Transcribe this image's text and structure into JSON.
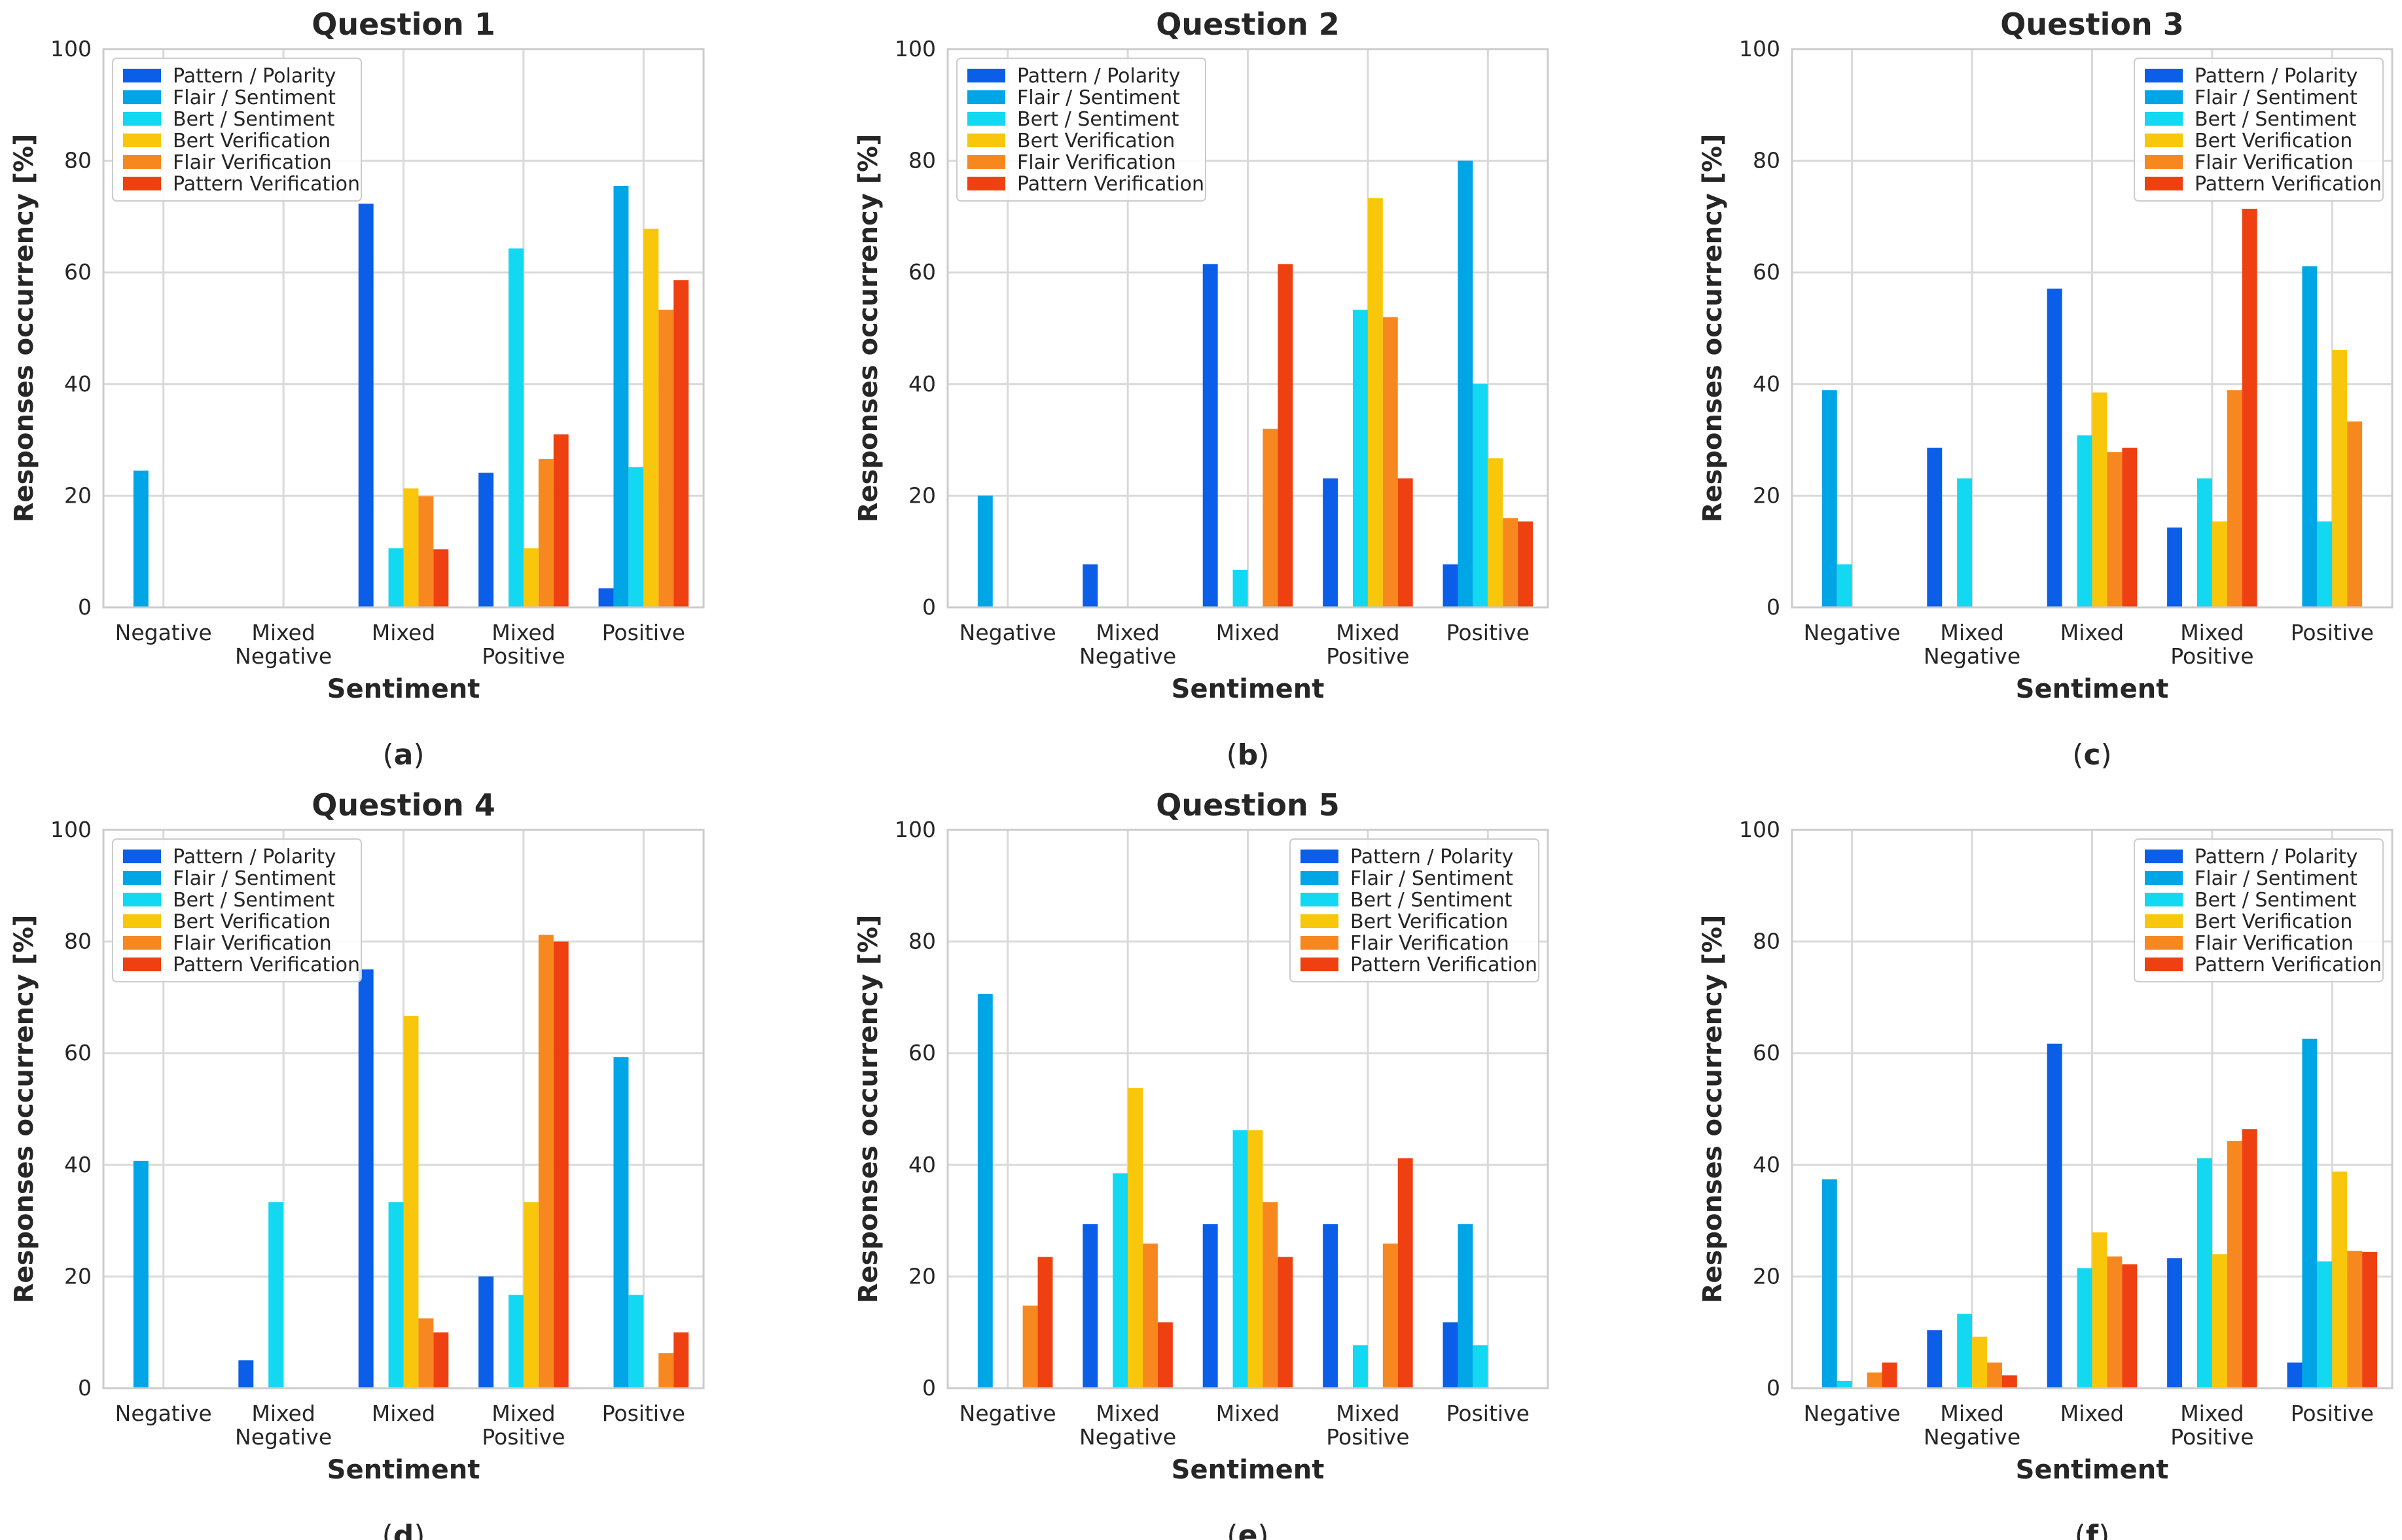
{
  "figure": {
    "captions": [
      "a",
      "b",
      "c",
      "d",
      "e",
      "f"
    ]
  },
  "chart_data": [
    {
      "type": "bar",
      "title": "Question 1",
      "caption": "a",
      "xlabel": "Sentiment",
      "ylabel": "Responses occurrency [%]",
      "ylim": [
        0,
        100
      ],
      "yticks": [
        0,
        20,
        40,
        60,
        80,
        100
      ],
      "grid": true,
      "legend_position": "top-left",
      "categories": [
        [
          "Negative"
        ],
        [
          "Mixed",
          "Negative"
        ],
        [
          "Mixed"
        ],
        [
          "Mixed",
          "Positive"
        ],
        [
          "Positive"
        ]
      ],
      "series": [
        {
          "name": "Pattern / Polarity",
          "color": "#0a5ee8",
          "values": [
            0,
            0,
            72.3,
            24.1,
            3.4
          ]
        },
        {
          "name": "Flair / Sentiment",
          "color": "#00a5e6",
          "values": [
            24.5,
            0,
            0,
            0,
            75.5
          ]
        },
        {
          "name": "Bert / Sentiment",
          "color": "#12d8f2",
          "values": [
            0,
            0,
            10.6,
            64.3,
            25.1
          ]
        },
        {
          "name": "Bert Verification",
          "color": "#f8c60a",
          "values": [
            0,
            0,
            21.3,
            10.6,
            67.8
          ]
        },
        {
          "name": "Flair Verification",
          "color": "#f78820",
          "values": [
            0,
            0,
            19.9,
            26.6,
            53.3
          ]
        },
        {
          "name": "Pattern Verification",
          "color": "#ee4011",
          "values": [
            0,
            0,
            10.4,
            31.0,
            58.6
          ]
        }
      ]
    },
    {
      "type": "bar",
      "title": "Question 2",
      "caption": "b",
      "xlabel": "Sentiment",
      "ylabel": "Responses occurrency [%]",
      "ylim": [
        0,
        100
      ],
      "yticks": [
        0,
        20,
        40,
        60,
        80,
        100
      ],
      "grid": true,
      "legend_position": "top-left",
      "categories": [
        [
          "Negative"
        ],
        [
          "Mixed",
          "Negative"
        ],
        [
          "Mixed"
        ],
        [
          "Mixed",
          "Positive"
        ],
        [
          "Positive"
        ]
      ],
      "series": [
        {
          "name": "Pattern / Polarity",
          "color": "#0a5ee8",
          "values": [
            0,
            7.7,
            61.5,
            23.1,
            7.7
          ]
        },
        {
          "name": "Flair / Sentiment",
          "color": "#00a5e6",
          "values": [
            20.0,
            0,
            0,
            0,
            80.0
          ]
        },
        {
          "name": "Bert / Sentiment",
          "color": "#12d8f2",
          "values": [
            0,
            0,
            6.7,
            53.3,
            40.0
          ]
        },
        {
          "name": "Bert Verification",
          "color": "#f8c60a",
          "values": [
            0,
            0,
            0,
            73.3,
            26.7
          ]
        },
        {
          "name": "Flair Verification",
          "color": "#f78820",
          "values": [
            0,
            0,
            32.0,
            52.0,
            16.0
          ]
        },
        {
          "name": "Pattern Verification",
          "color": "#ee4011",
          "values": [
            0,
            0,
            61.5,
            23.1,
            15.4
          ]
        }
      ]
    },
    {
      "type": "bar",
      "title": "Question 3",
      "caption": "c",
      "xlabel": "Sentiment",
      "ylabel": "Responses occurrency [%]",
      "ylim": [
        0,
        100
      ],
      "yticks": [
        0,
        20,
        40,
        60,
        80,
        100
      ],
      "grid": true,
      "legend_position": "top-right",
      "categories": [
        [
          "Negative"
        ],
        [
          "Mixed",
          "Negative"
        ],
        [
          "Mixed"
        ],
        [
          "Mixed",
          "Positive"
        ],
        [
          "Positive"
        ]
      ],
      "series": [
        {
          "name": "Pattern / Polarity",
          "color": "#0a5ee8",
          "values": [
            0,
            28.6,
            57.1,
            14.3,
            0
          ]
        },
        {
          "name": "Flair / Sentiment",
          "color": "#00a5e6",
          "values": [
            38.9,
            0,
            0,
            0,
            61.1
          ]
        },
        {
          "name": "Bert / Sentiment",
          "color": "#12d8f2",
          "values": [
            7.7,
            23.1,
            30.8,
            23.1,
            15.4
          ]
        },
        {
          "name": "Bert Verification",
          "color": "#f8c60a",
          "values": [
            0,
            0,
            38.5,
            15.4,
            46.1
          ]
        },
        {
          "name": "Flair Verification",
          "color": "#f78820",
          "values": [
            0,
            0,
            27.8,
            38.9,
            33.3
          ]
        },
        {
          "name": "Pattern Verification",
          "color": "#ee4011",
          "values": [
            0,
            0,
            28.6,
            71.4,
            0
          ]
        }
      ]
    },
    {
      "type": "bar",
      "title": "Question 4",
      "caption": "d",
      "xlabel": "Sentiment",
      "ylabel": "Responses occurrency [%]",
      "ylim": [
        0,
        100
      ],
      "yticks": [
        0,
        20,
        40,
        60,
        80,
        100
      ],
      "grid": true,
      "legend_position": "top-left",
      "categories": [
        [
          "Negative"
        ],
        [
          "Mixed",
          "Negative"
        ],
        [
          "Mixed"
        ],
        [
          "Mixed",
          "Positive"
        ],
        [
          "Positive"
        ]
      ],
      "series": [
        {
          "name": "Pattern / Polarity",
          "color": "#0a5ee8",
          "values": [
            0,
            5.0,
            75.0,
            20.0,
            0
          ]
        },
        {
          "name": "Flair / Sentiment",
          "color": "#00a5e6",
          "values": [
            40.7,
            0,
            0,
            0,
            59.3
          ]
        },
        {
          "name": "Bert / Sentiment",
          "color": "#12d8f2",
          "values": [
            0,
            33.3,
            33.3,
            16.7,
            16.7
          ]
        },
        {
          "name": "Bert Verification",
          "color": "#f8c60a",
          "values": [
            0,
            0,
            66.7,
            33.3,
            0
          ]
        },
        {
          "name": "Flair Verification",
          "color": "#f78820",
          "values": [
            0,
            0,
            12.5,
            81.2,
            6.3
          ]
        },
        {
          "name": "Pattern Verification",
          "color": "#ee4011",
          "values": [
            0,
            0,
            10.0,
            80.0,
            10.0
          ]
        }
      ]
    },
    {
      "type": "bar",
      "title": "Question 5",
      "caption": "e",
      "xlabel": "Sentiment",
      "ylabel": "Responses occurrency [%]",
      "ylim": [
        0,
        100
      ],
      "yticks": [
        0,
        20,
        40,
        60,
        80,
        100
      ],
      "grid": true,
      "legend_position": "top-right",
      "categories": [
        [
          "Negative"
        ],
        [
          "Mixed",
          "Negative"
        ],
        [
          "Mixed"
        ],
        [
          "Mixed",
          "Positive"
        ],
        [
          "Positive"
        ]
      ],
      "series": [
        {
          "name": "Pattern / Polarity",
          "color": "#0a5ee8",
          "values": [
            0,
            29.4,
            29.4,
            29.4,
            11.8
          ]
        },
        {
          "name": "Flair / Sentiment",
          "color": "#00a5e6",
          "values": [
            70.6,
            0,
            0,
            0,
            29.4
          ]
        },
        {
          "name": "Bert / Sentiment",
          "color": "#12d8f2",
          "values": [
            0,
            38.5,
            46.2,
            7.7,
            7.7
          ]
        },
        {
          "name": "Bert Verification",
          "color": "#f8c60a",
          "values": [
            0,
            53.8,
            46.2,
            0,
            0
          ]
        },
        {
          "name": "Flair Verification",
          "color": "#f78820",
          "values": [
            14.8,
            25.9,
            33.3,
            25.9,
            0
          ]
        },
        {
          "name": "Pattern Verification",
          "color": "#ee4011",
          "values": [
            23.5,
            11.8,
            23.5,
            41.2,
            0
          ]
        }
      ]
    },
    {
      "type": "bar",
      "title": "",
      "caption": "f",
      "xlabel": "Sentiment",
      "ylabel": "Responses occurrency [%]",
      "ylim": [
        0,
        100
      ],
      "yticks": [
        0,
        20,
        40,
        60,
        80,
        100
      ],
      "grid": true,
      "legend_position": "top-right",
      "categories": [
        [
          "Negative"
        ],
        [
          "Mixed",
          "Negative"
        ],
        [
          "Mixed"
        ],
        [
          "Mixed",
          "Positive"
        ],
        [
          "Positive"
        ]
      ],
      "series": [
        {
          "name": "Pattern / Polarity",
          "color": "#0a5ee8",
          "values": [
            0,
            10.4,
            61.7,
            23.3,
            4.6
          ]
        },
        {
          "name": "Flair / Sentiment",
          "color": "#00a5e6",
          "values": [
            37.4,
            0,
            0,
            0,
            62.6
          ]
        },
        {
          "name": "Bert / Sentiment",
          "color": "#12d8f2",
          "values": [
            1.3,
            13.3,
            21.5,
            41.2,
            22.7
          ]
        },
        {
          "name": "Bert Verification",
          "color": "#f8c60a",
          "values": [
            0,
            9.2,
            27.9,
            24.0,
            38.8
          ]
        },
        {
          "name": "Flair Verification",
          "color": "#f78820",
          "values": [
            2.8,
            4.6,
            23.6,
            44.3,
            24.6
          ]
        },
        {
          "name": "Pattern Verification",
          "color": "#ee4011",
          "values": [
            4.6,
            2.3,
            22.2,
            46.4,
            24.4
          ]
        }
      ]
    }
  ]
}
